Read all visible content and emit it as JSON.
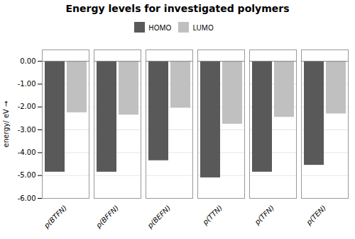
{
  "chart_data": {
    "type": "bar",
    "title": "Energy levels for investigated polymers",
    "ylabel": "energy/ eV",
    "categories": [
      "p(BTFN)",
      "p(BFFN)",
      "p(BEFN)",
      "p(TTN)",
      "p(TFN)",
      "p(TEN)"
    ],
    "series": [
      {
        "name": "HOMO",
        "color": "#595959",
        "values": [
          -4.85,
          -4.85,
          -4.35,
          -5.1,
          -4.85,
          -4.55
        ]
      },
      {
        "name": "LUMO",
        "color": "#c0c0c0",
        "values": [
          -2.25,
          -2.35,
          -2.05,
          -2.75,
          -2.45,
          -2.3
        ]
      }
    ],
    "ylim": [
      -6.0,
      0.5
    ],
    "yticks": [
      {
        "value": 0.0,
        "label": "0.00"
      },
      {
        "value": -1.0,
        "label": "-1.00"
      },
      {
        "value": -2.0,
        "label": "-2.00"
      },
      {
        "value": -3.0,
        "label": "-3.00"
      },
      {
        "value": -4.0,
        "label": "-4.00"
      },
      {
        "value": -5.0,
        "label": "-5.00"
      },
      {
        "value": -6.0,
        "label": "-6.00"
      }
    ],
    "grid": true,
    "legend": "top"
  }
}
